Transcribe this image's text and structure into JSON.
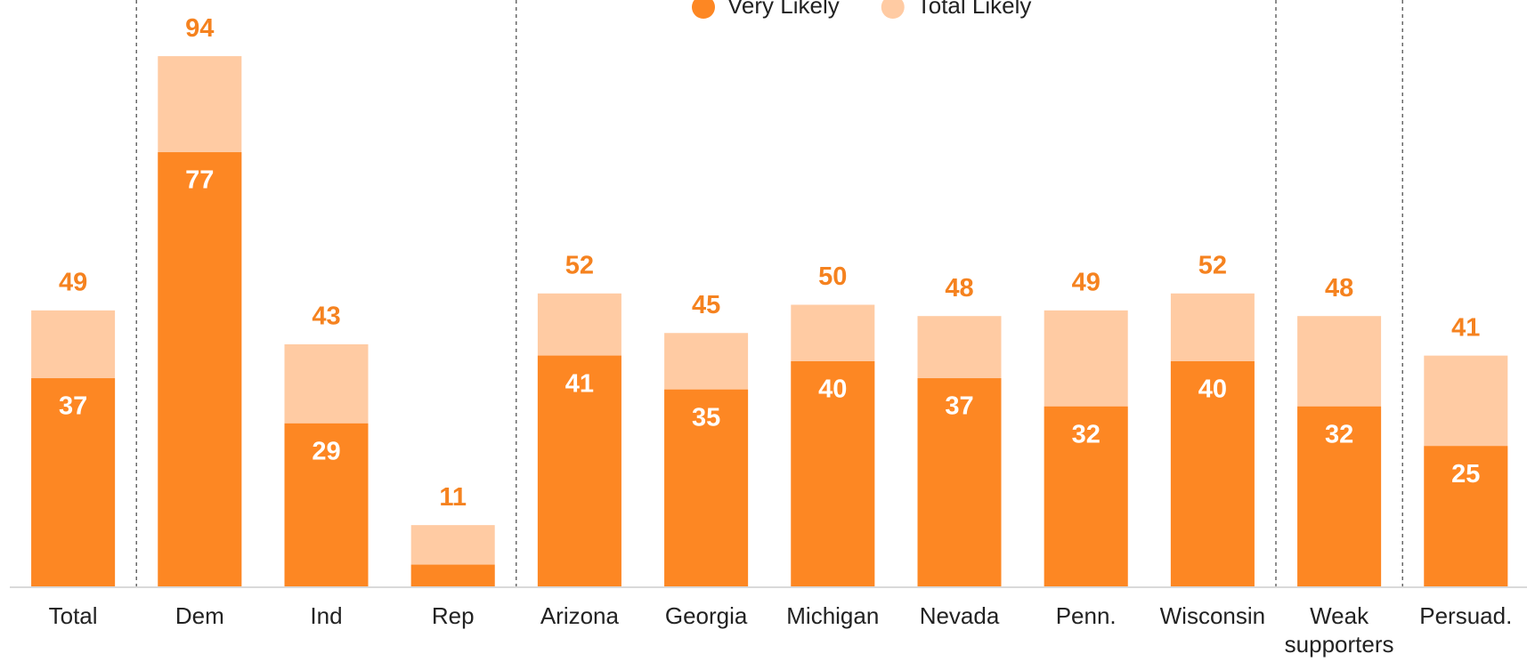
{
  "chart_data": {
    "type": "bar",
    "categories": [
      "Total",
      "Dem",
      "Ind",
      "Rep",
      "Arizona",
      "Georgia",
      "Michigan",
      "Nevada",
      "Penn.",
      "Wisconsin",
      "Weak supporters",
      "Persuad."
    ],
    "series": [
      {
        "name": "Very Likely",
        "color": "#fd8723",
        "label_color": "#ffffff",
        "values": [
          37,
          77,
          29,
          4,
          41,
          35,
          40,
          37,
          32,
          40,
          32,
          25
        ],
        "value_labels": [
          "37",
          "77",
          "29",
          null,
          "41",
          "35",
          "40",
          "37",
          "32",
          "40",
          "32",
          "25"
        ]
      },
      {
        "name": "Total Likely",
        "color": "#ffcba3",
        "label_color": "#f5821f",
        "values": [
          49,
          94,
          43,
          11,
          52,
          45,
          50,
          48,
          49,
          52,
          48,
          41
        ],
        "value_labels": [
          "49",
          "94",
          "43",
          "11",
          "52",
          "45",
          "50",
          "48",
          "49",
          "52",
          "48",
          "41"
        ]
      }
    ],
    "ylim": [
      0,
      100
    ]
  }
}
